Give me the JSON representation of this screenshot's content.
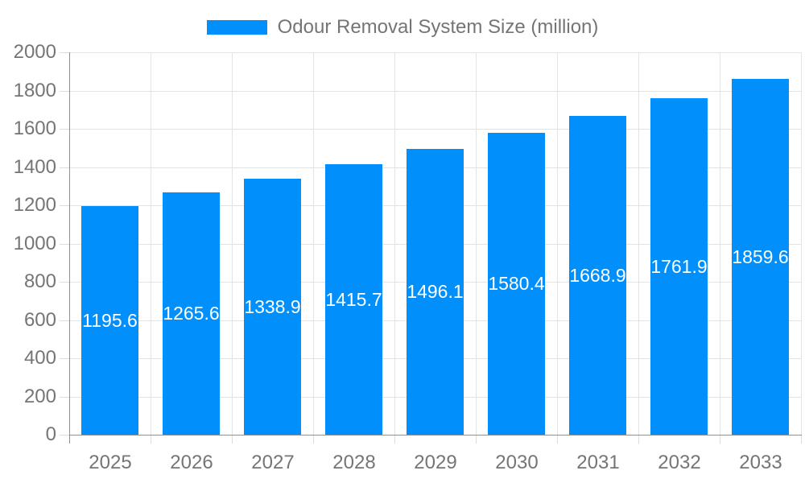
{
  "legend": {
    "label": "Odour Removal System Size (million)",
    "swatch_color": "#008FFB"
  },
  "chart_data": {
    "type": "bar",
    "title": "",
    "series_name": "Odour Removal System Size (million)",
    "categories": [
      "2025",
      "2026",
      "2027",
      "2028",
      "2029",
      "2030",
      "2031",
      "2032",
      "2033"
    ],
    "values": [
      1195.6,
      1265.6,
      1338.9,
      1415.7,
      1496.1,
      1580.4,
      1668.9,
      1761.9,
      1859.6
    ],
    "xlabel": "",
    "ylabel": "",
    "ylim": [
      0,
      2000
    ],
    "ytick_step": 200,
    "grid": true,
    "legend_position": "top-center",
    "bar_color": "#008FFB",
    "value_label_color": "#ffffff",
    "value_label_position": "inside-center"
  },
  "colors": {
    "background": "#ffffff",
    "axis_line": "#909090",
    "grid_line": "#e3e3e3",
    "tick_line": "#dcdcdc",
    "axis_label": "#757575",
    "legend_text": "#757575"
  }
}
